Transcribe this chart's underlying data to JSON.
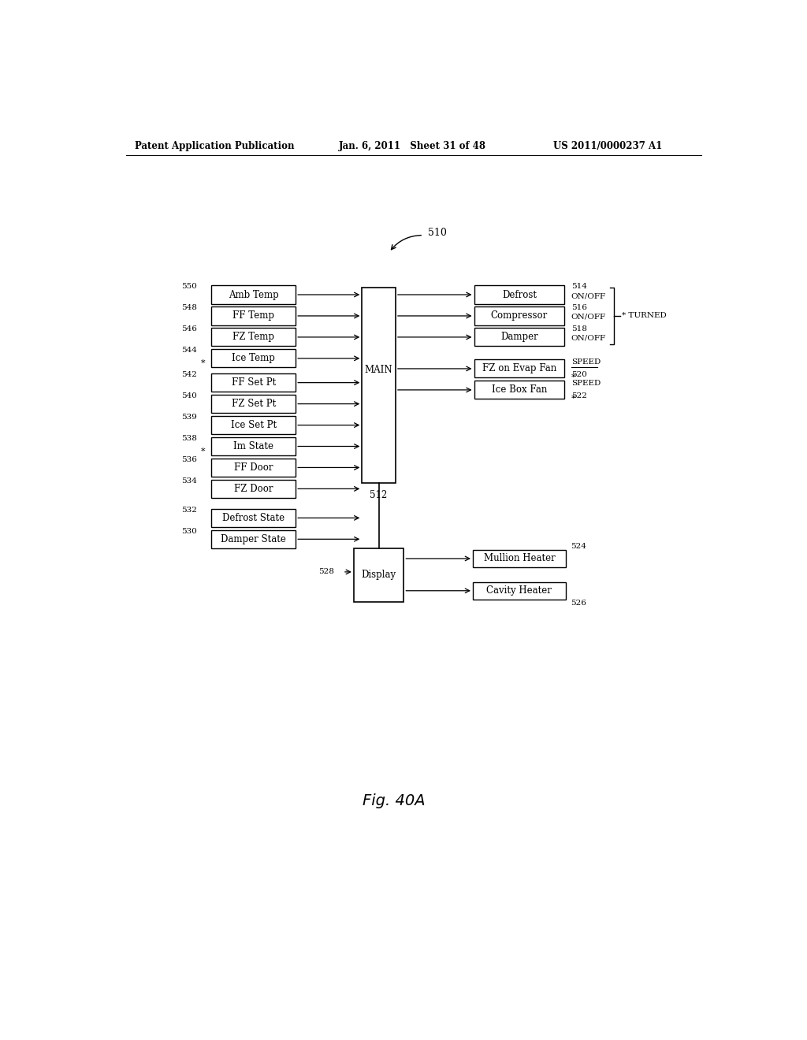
{
  "bg_color": "#ffffff",
  "header_left": "Patent Application Publication",
  "header_mid": "Jan. 6, 2011   Sheet 31 of 48",
  "header_right": "US 2011/0000237 A1",
  "fig_label": "Fig. 40A",
  "diagram_label": "510",
  "main_label": "MAIN",
  "main_number": "512",
  "left_inputs_group1": [
    {
      "label": "Amb Temp",
      "num": "550",
      "star": false
    },
    {
      "label": "FF Temp",
      "num": "548",
      "star": false
    },
    {
      "label": "FZ Temp",
      "num": "546",
      "star": false
    },
    {
      "label": "Ice Temp",
      "num": "544",
      "star": true
    }
  ],
  "left_inputs_group2": [
    {
      "label": "FF Set Pt",
      "num": "542",
      "star": false
    },
    {
      "label": "FZ Set Pt",
      "num": "540",
      "star": false
    },
    {
      "label": "Ice Set Pt",
      "num": "539",
      "star": false
    },
    {
      "label": "Im State",
      "num": "538",
      "star": true
    },
    {
      "label": "FF Door",
      "num": "536",
      "star": false
    },
    {
      "label": "FZ Door",
      "num": "534",
      "star": false
    }
  ],
  "left_inputs_group3": [
    {
      "label": "Defrost State",
      "num": "532"
    },
    {
      "label": "Damper State",
      "num": "530"
    }
  ],
  "right_outputs_group1": [
    {
      "label": "Defrost",
      "num": "514",
      "suffix": "ON/OFF"
    },
    {
      "label": "Compressor",
      "num": "516",
      "suffix": "ON/OFF"
    },
    {
      "label": "Damper",
      "num": "518",
      "suffix": "ON/OFF"
    }
  ],
  "right_outputs_group2": [
    {
      "label": "FZ on Evap Fan",
      "num": "520",
      "suffix": "SPEED",
      "suffix_underline": true,
      "star": true
    },
    {
      "label": "Ice Box Fan",
      "num": "522",
      "suffix": "SPEED",
      "suffix_underline": false,
      "star": true
    }
  ],
  "turned_label": "* TURNED",
  "display_label": "Display",
  "display_number": "528",
  "display_outputs": [
    {
      "label": "Mullion Heater",
      "num": "524"
    },
    {
      "label": "Cavity Heater",
      "num": "526"
    }
  ]
}
